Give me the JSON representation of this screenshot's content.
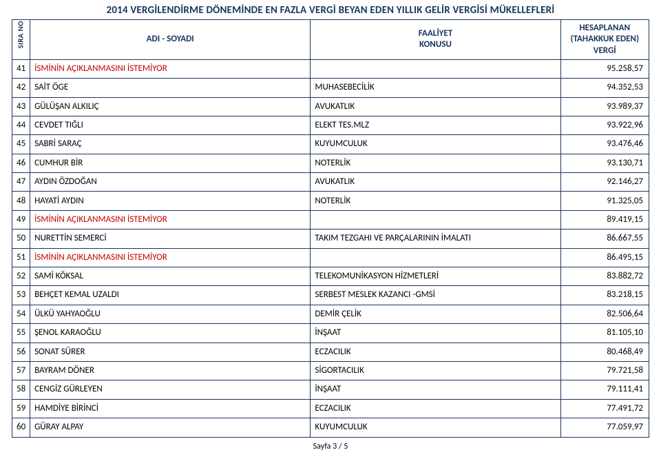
{
  "title": "2014 VERGİLENDİRME DÖNEMİNDE EN FAZLA VERGİ BEYAN EDEN YILLIK GELİR VERGİSİ MÜKELLEFLERİ",
  "columns": {
    "sira": "SIRA NO",
    "name": "ADI - SOYADI",
    "activity_l1": "FAALİYET",
    "activity_l2": "KONUSU",
    "tax_l1": "HESAPLANAN",
    "tax_l2": "(TAHAKKUK EDEN)",
    "tax_l3": "VERGİ"
  },
  "colors": {
    "header": "#17365d",
    "border": "#17365d",
    "red": "#c00000",
    "text": "#000000",
    "background": "#ffffff"
  },
  "footer": "Sayfa 3 / 5",
  "rows": [
    {
      "no": "41",
      "name": "İSMİNİN AÇIKLANMASINI İSTEMİYOR",
      "activity": "",
      "tax": "95.258,57",
      "red": true
    },
    {
      "no": "42",
      "name": "SAİT ÖGE",
      "activity": "MUHASEBECİLİK",
      "tax": "94.352,53",
      "red": false
    },
    {
      "no": "43",
      "name": "GÜLÜŞAN ALKILIÇ",
      "activity": "AVUKATLIK",
      "tax": "93.989,37",
      "red": false
    },
    {
      "no": "44",
      "name": "CEVDET TIĞLI",
      "activity": "ELEKT TES.MLZ",
      "tax": "93.922,96",
      "red": false
    },
    {
      "no": "45",
      "name": "SABRİ SARAÇ",
      "activity": "KUYUMCULUK",
      "tax": "93.476,46",
      "red": false
    },
    {
      "no": "46",
      "name": "CUMHUR BİR",
      "activity": "NOTERLİK",
      "tax": "93.130,71",
      "red": false
    },
    {
      "no": "47",
      "name": "AYDIN ÖZDOĞAN",
      "activity": "AVUKATLIK",
      "tax": "92.146,27",
      "red": false
    },
    {
      "no": "48",
      "name": "HAYATİ AYDIN",
      "activity": "NOTERLİK",
      "tax": "91.325,05",
      "red": false
    },
    {
      "no": "49",
      "name": "İSMİNİN AÇIKLANMASINI İSTEMİYOR",
      "activity": "",
      "tax": "89.419,15",
      "red": true
    },
    {
      "no": "50",
      "name": "NURETTİN SEMERCİ",
      "activity": "TAKIM TEZGAHI VE PARÇALARININ İMALATI",
      "tax": "86.667,55",
      "red": false
    },
    {
      "no": "51",
      "name": "İSMİNİN AÇIKLANMASINI İSTEMİYOR",
      "activity": "",
      "tax": "86.495,15",
      "red": true
    },
    {
      "no": "52",
      "name": "SAMİ KÖKSAL",
      "activity": "TELEKOMUNİKASYON HİZMETLERİ",
      "tax": "83.882,72",
      "red": false
    },
    {
      "no": "53",
      "name": "BEHÇET KEMAL UZALDI",
      "activity": "SERBEST MESLEK KAZANCI -GMSİ",
      "tax": "83.218,15",
      "red": false
    },
    {
      "no": "54",
      "name": "ÜLKÜ YAHYAOĞLU",
      "activity": "DEMİR ÇELİK",
      "tax": "82.506,64",
      "red": false
    },
    {
      "no": "55",
      "name": "ŞENOL KARAOĞLU",
      "activity": "İNŞAAT",
      "tax": "81.105,10",
      "red": false
    },
    {
      "no": "56",
      "name": "SONAT SÜRER",
      "activity": "ECZACILIK",
      "tax": "80.468,49",
      "red": false
    },
    {
      "no": "57",
      "name": "BAYRAM DÖNER",
      "activity": "SİGORTACILIK",
      "tax": "79.721,58",
      "red": false
    },
    {
      "no": "58",
      "name": "CENGİZ GÜRLEYEN",
      "activity": "İNŞAAT",
      "tax": "79.111,41",
      "red": false
    },
    {
      "no": "59",
      "name": "HAMDİYE BİRİNCİ",
      "activity": "ECZACILIK",
      "tax": "77.491,72",
      "red": false
    },
    {
      "no": "60",
      "name": "GÜRAY ALPAY",
      "activity": "KUYUMCULUK",
      "tax": "77.059,97",
      "red": false
    }
  ]
}
